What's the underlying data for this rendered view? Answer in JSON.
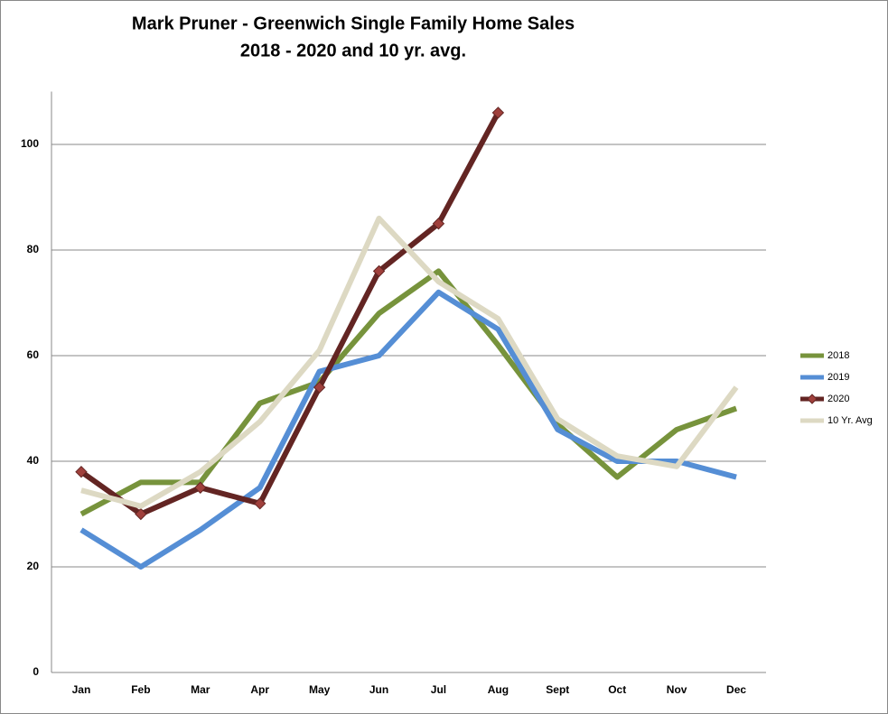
{
  "chart_data": {
    "type": "line",
    "title": "Mark Pruner - Greenwich Single Family Home Sales",
    "subtitle": "2018 - 2020 and 10 yr. avg.",
    "categories": [
      "Jan",
      "Feb",
      "Mar",
      "Apr",
      "May",
      "Jun",
      "Jul",
      "Aug",
      "Sept",
      "Oct",
      "Nov",
      "Dec"
    ],
    "series": [
      {
        "name": "2018",
        "color": "#77933c",
        "marker": false,
        "values": [
          30,
          36,
          36,
          51,
          55,
          68,
          76,
          62,
          47,
          37,
          46,
          50
        ]
      },
      {
        "name": "2019",
        "color": "#558ed5",
        "marker": false,
        "values": [
          27,
          20,
          27,
          35,
          57,
          60,
          72,
          65,
          46,
          40,
          40,
          37
        ]
      },
      {
        "name": "2020",
        "color": "#632523",
        "marker": true,
        "marker_color": "#a0403c",
        "values": [
          38,
          30,
          35,
          32,
          54,
          76,
          85,
          106,
          null,
          null,
          null,
          null
        ]
      },
      {
        "name": "10 Yr. Avg",
        "color": "#ddd9c3",
        "marker": false,
        "values": [
          34.5,
          31.5,
          38,
          47.5,
          61,
          86,
          74,
          67,
          48,
          41,
          39,
          54
        ]
      }
    ],
    "ylim": [
      0,
      110
    ],
    "yticks": [
      0,
      20,
      40,
      60,
      80,
      100
    ],
    "grid": true,
    "legend": "right"
  }
}
